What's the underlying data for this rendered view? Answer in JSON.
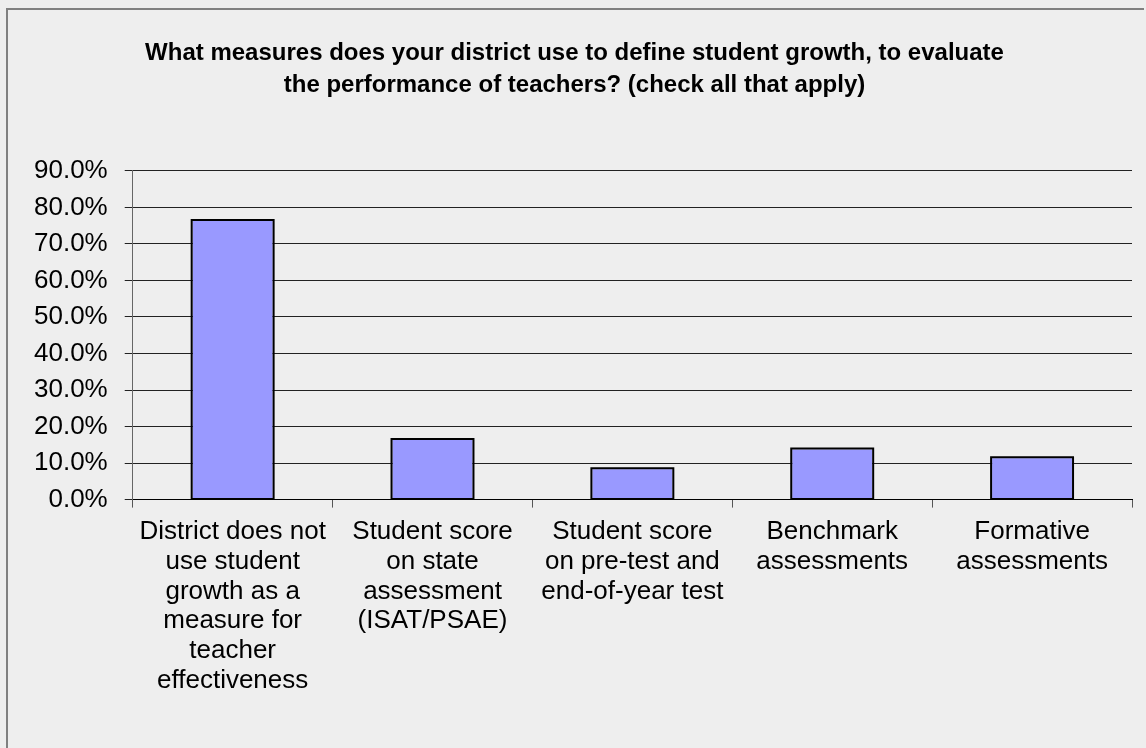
{
  "chart_data": {
    "type": "bar",
    "title": "What measures does your district use to define student growth, to evaluate the performance of teachers? (check all that apply)",
    "categories": [
      "District does not use student growth as a measure for teacher effectiveness",
      "Student score on state assessment (ISAT/PSAE)",
      "Student score on pre-test and end-of-year test",
      "Benchmark assessments",
      "Formative assessments"
    ],
    "values": [
      76.3,
      16.3,
      8.3,
      13.7,
      11.3
    ],
    "color": "#9999ff",
    "ylim": [
      0,
      90
    ],
    "yticks": [
      {
        "value": 0,
        "label": "0.0%"
      },
      {
        "value": 10,
        "label": "10.0%"
      },
      {
        "value": 20,
        "label": "20.0%"
      },
      {
        "value": 30,
        "label": "30.0%"
      },
      {
        "value": 40,
        "label": "40.0%"
      },
      {
        "value": 50,
        "label": "50.0%"
      },
      {
        "value": 60,
        "label": "60.0%"
      },
      {
        "value": 70,
        "label": "70.0%"
      },
      {
        "value": 80,
        "label": "80.0%"
      },
      {
        "value": 90,
        "label": "90.0%"
      }
    ],
    "grid": "y"
  }
}
